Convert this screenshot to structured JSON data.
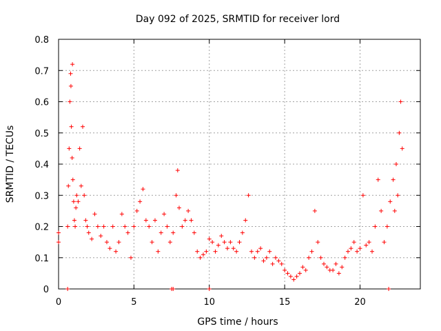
{
  "chart_data": {
    "type": "scatter",
    "title": "Day 092 of 2025, SRMTID for receiver lord",
    "xlabel": "GPS time / hours",
    "ylabel": "SRMTID / TECUs",
    "xlim": [
      0,
      24
    ],
    "ylim": [
      0,
      0.8
    ],
    "x_ticks": [
      0,
      5,
      10,
      15,
      20
    ],
    "y_ticks": [
      0,
      0.1,
      0.2,
      0.3,
      0.4,
      0.5,
      0.6,
      0.7,
      0.8
    ],
    "x_tick_labels": [
      "0",
      "5",
      "10",
      "15",
      "20"
    ],
    "y_tick_labels": [
      "0",
      "0.1",
      "0.2",
      "0.3",
      "0.4",
      "0.5",
      "0.6",
      "0.7",
      "0.8"
    ],
    "grid": true,
    "legend": "none",
    "marker": "+",
    "color": "#ff0000",
    "series": [
      {
        "name": "SRMTID",
        "x": [
          0.0,
          0.0,
          0.6,
          0.65,
          0.7,
          0.75,
          0.8,
          0.82,
          0.85,
          0.9,
          0.92,
          0.95,
          1.0,
          1.05,
          1.1,
          1.15,
          1.2,
          1.3,
          1.4,
          1.5,
          1.6,
          1.7,
          1.8,
          1.9,
          2.0,
          2.2,
          2.4,
          2.6,
          2.8,
          3.0,
          3.2,
          3.4,
          3.6,
          3.8,
          4.0,
          4.2,
          4.4,
          4.6,
          4.8,
          5.0,
          5.2,
          5.4,
          5.6,
          5.8,
          6.0,
          6.2,
          6.4,
          6.6,
          6.8,
          7.0,
          7.2,
          7.4,
          7.6,
          7.8,
          7.9,
          8.0,
          8.2,
          8.4,
          8.6,
          8.8,
          9.0,
          9.2,
          9.4,
          9.6,
          9.8,
          10.0,
          10.2,
          10.4,
          10.6,
          10.8,
          11.0,
          11.2,
          11.4,
          11.6,
          11.8,
          12.0,
          12.2,
          12.4,
          12.6,
          12.8,
          13.0,
          13.2,
          13.4,
          13.6,
          13.8,
          14.0,
          14.2,
          14.4,
          14.6,
          14.8,
          15.0,
          15.2,
          15.4,
          15.6,
          15.8,
          16.0,
          16.2,
          16.4,
          16.6,
          16.8,
          17.0,
          17.2,
          17.4,
          17.6,
          17.8,
          18.0,
          18.2,
          18.4,
          18.6,
          18.8,
          19.0,
          19.2,
          19.4,
          19.6,
          19.8,
          20.0,
          20.2,
          20.4,
          20.6,
          20.8,
          21.0,
          21.2,
          21.4,
          21.6,
          21.8,
          22.0,
          22.2,
          22.3,
          22.4,
          22.5,
          22.6,
          22.7,
          22.8,
          0.6,
          7.5,
          7.6,
          10.0,
          21.9
        ],
        "y": [
          0.15,
          0.18,
          0.2,
          0.33,
          0.45,
          0.6,
          0.69,
          0.65,
          0.52,
          0.42,
          0.72,
          0.35,
          0.28,
          0.22,
          0.2,
          0.26,
          0.3,
          0.28,
          0.45,
          0.33,
          0.52,
          0.3,
          0.22,
          0.2,
          0.18,
          0.16,
          0.24,
          0.2,
          0.17,
          0.2,
          0.15,
          0.13,
          0.2,
          0.12,
          0.15,
          0.24,
          0.2,
          0.18,
          0.1,
          0.2,
          0.25,
          0.28,
          0.32,
          0.22,
          0.2,
          0.15,
          0.22,
          0.12,
          0.18,
          0.24,
          0.2,
          0.15,
          0.18,
          0.3,
          0.38,
          0.26,
          0.2,
          0.22,
          0.25,
          0.22,
          0.18,
          0.12,
          0.1,
          0.11,
          0.12,
          0.16,
          0.15,
          0.12,
          0.14,
          0.17,
          0.15,
          0.13,
          0.15,
          0.13,
          0.12,
          0.15,
          0.18,
          0.22,
          0.3,
          0.12,
          0.1,
          0.12,
          0.13,
          0.09,
          0.1,
          0.12,
          0.08,
          0.1,
          0.09,
          0.08,
          0.06,
          0.05,
          0.04,
          0.03,
          0.04,
          0.05,
          0.07,
          0.06,
          0.1,
          0.12,
          0.25,
          0.15,
          0.1,
          0.08,
          0.07,
          0.06,
          0.06,
          0.08,
          0.05,
          0.07,
          0.1,
          0.12,
          0.13,
          0.15,
          0.12,
          0.13,
          0.3,
          0.14,
          0.15,
          0.12,
          0.2,
          0.35,
          0.25,
          0.15,
          0.2,
          0.28,
          0.35,
          0.25,
          0.4,
          0.3,
          0.5,
          0.6,
          0.45,
          0.0,
          0.0,
          0.0,
          0.0,
          0.0
        ]
      }
    ]
  }
}
